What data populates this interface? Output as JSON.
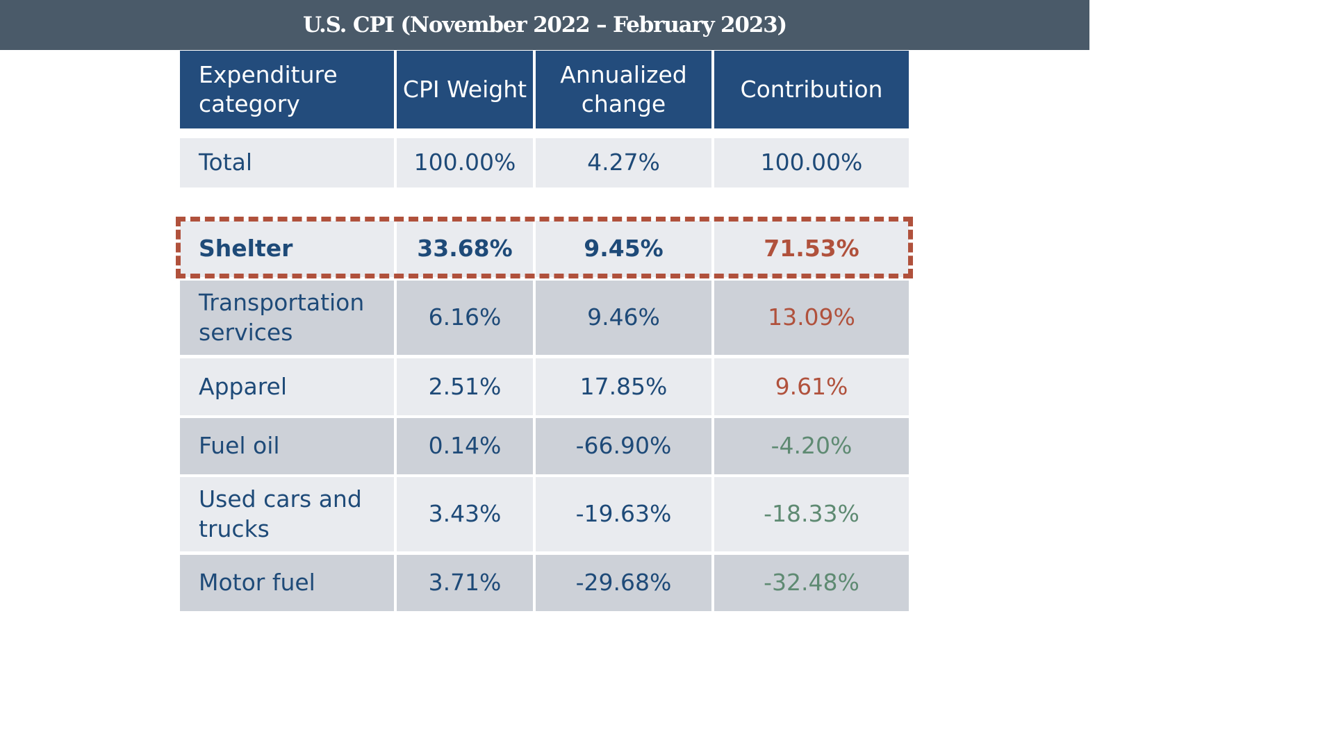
{
  "title": "U.S. CPI (November 2022 – February 2023)",
  "colors": {
    "title_bg": "#4a5a69",
    "header_bg": "#234c7c",
    "text_blue": "#1e4a78",
    "positive_contribution": "#b0513c",
    "negative_contribution": "#5e8a72",
    "row_light": "#e9ebef",
    "row_dark": "#cdd1d8",
    "highlight_border": "#b0513c"
  },
  "chart_data": {
    "type": "table",
    "title": "U.S. CPI (November 2022 – February 2023)",
    "columns": [
      "Expenditure category",
      "CPI Weight",
      "Annualized change",
      "Contribution"
    ],
    "rows": [
      {
        "category": "Total",
        "weight": "100.00%",
        "change": "4.27%",
        "contribution": "100.00%",
        "sign": "neutral",
        "highlight": false
      },
      {
        "category": "Shelter",
        "weight": "33.68%",
        "change": "9.45%",
        "contribution": "71.53%",
        "sign": "positive",
        "highlight": true
      },
      {
        "category": "Transportation services",
        "weight": "6.16%",
        "change": "9.46%",
        "contribution": "13.09%",
        "sign": "positive",
        "highlight": false
      },
      {
        "category": "Apparel",
        "weight": "2.51%",
        "change": "17.85%",
        "contribution": "9.61%",
        "sign": "positive",
        "highlight": false
      },
      {
        "category": "Fuel oil",
        "weight": "0.14%",
        "change": "-66.90%",
        "contribution": "-4.20%",
        "sign": "negative",
        "highlight": false
      },
      {
        "category": "Used cars and trucks",
        "weight": "3.43%",
        "change": "-19.63%",
        "contribution": "-18.33%",
        "sign": "negative",
        "highlight": false
      },
      {
        "category": "Motor fuel",
        "weight": "3.71%",
        "change": "-29.68%",
        "contribution": "-32.48%",
        "sign": "negative",
        "highlight": false
      }
    ]
  }
}
